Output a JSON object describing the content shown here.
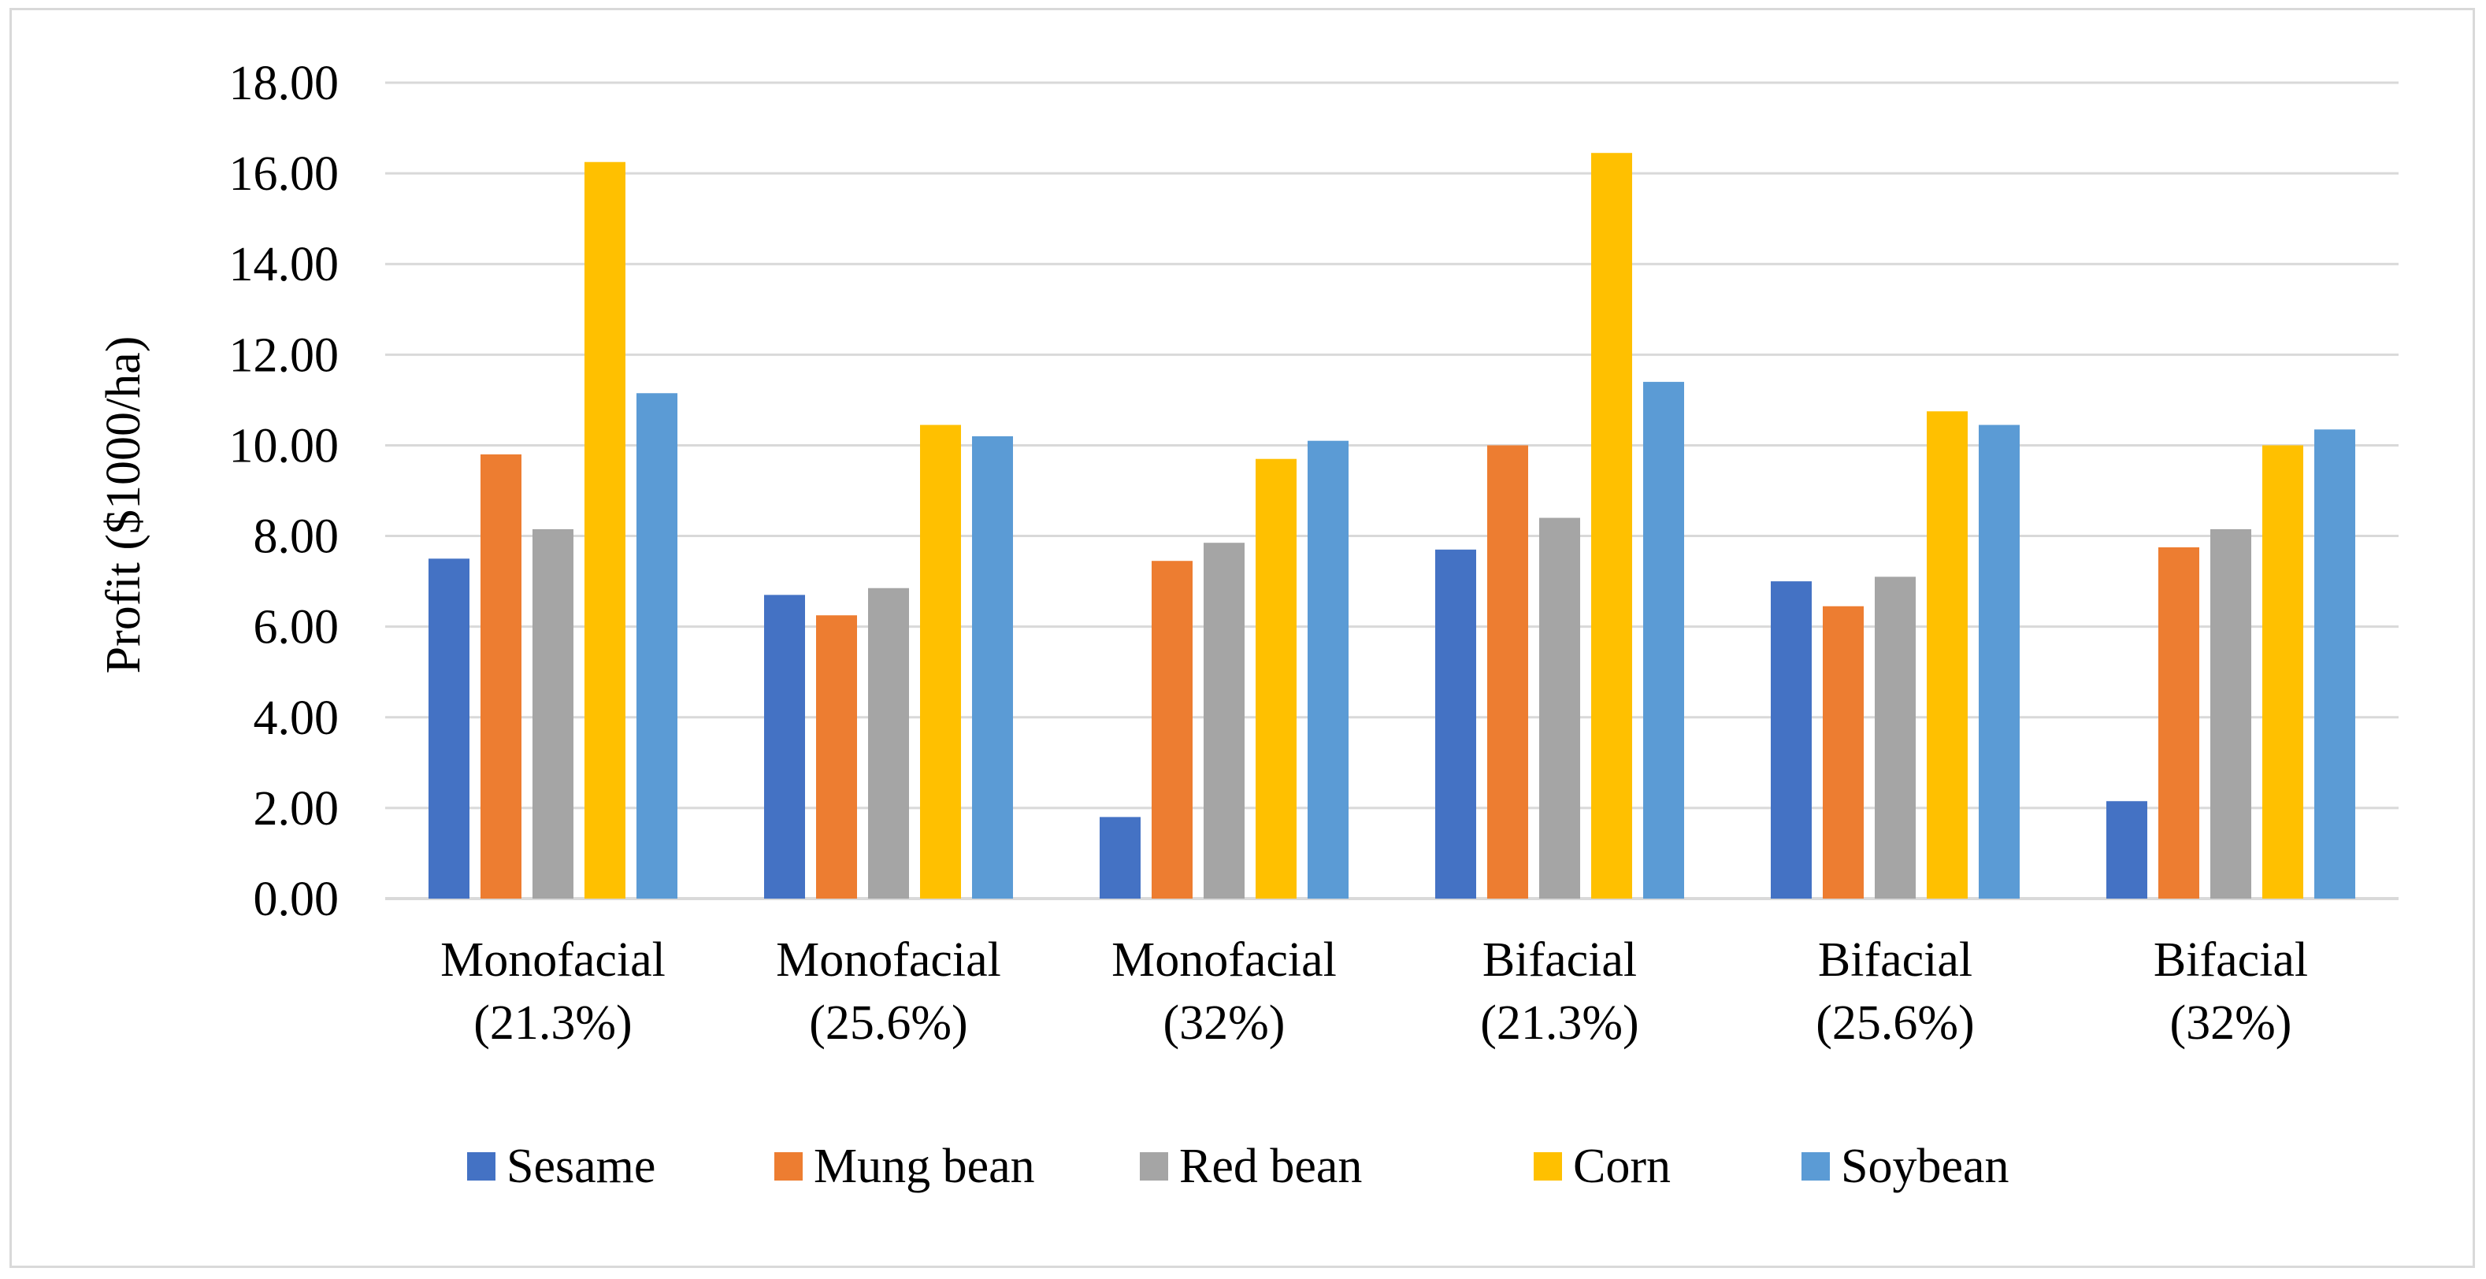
{
  "chart_data": {
    "type": "bar",
    "title": "",
    "xlabel": "",
    "ylabel": "Profit ($1000/ha)",
    "ylim": [
      0,
      18
    ],
    "ytick_step": 2,
    "ytick_labels": [
      "0.00",
      "2.00",
      "4.00",
      "6.00",
      "8.00",
      "10.00",
      "12.00",
      "14.00",
      "16.00",
      "18.00"
    ],
    "grid": true,
    "legend_position": "bottom",
    "categories": [
      [
        "Monofacial",
        "(21.3%)"
      ],
      [
        "Monofacial",
        "(25.6%)"
      ],
      [
        "Monofacial",
        "(32%)"
      ],
      [
        "Bifacial",
        "(21.3%)"
      ],
      [
        "Bifacial",
        "(25.6%)"
      ],
      [
        "Bifacial",
        "(32%)"
      ]
    ],
    "series": [
      {
        "name": "Sesame",
        "color": "#4472c4",
        "values": [
          7.5,
          6.7,
          1.8,
          7.7,
          7.0,
          2.15
        ]
      },
      {
        "name": "Mung bean",
        "color": "#ed7d31",
        "values": [
          9.8,
          6.25,
          7.45,
          10.0,
          6.45,
          7.75
        ]
      },
      {
        "name": "Red bean",
        "color": "#a5a5a5",
        "values": [
          8.15,
          6.85,
          7.85,
          8.4,
          7.1,
          8.15
        ]
      },
      {
        "name": "Corn",
        "color": "#ffc000",
        "values": [
          16.25,
          10.45,
          9.7,
          16.45,
          10.75,
          10.0
        ]
      },
      {
        "name": "Soybean",
        "color": "#5b9bd5",
        "values": [
          11.15,
          10.2,
          10.1,
          11.4,
          10.45,
          10.35
        ]
      }
    ],
    "gridline_color": "#d9d9d9"
  }
}
